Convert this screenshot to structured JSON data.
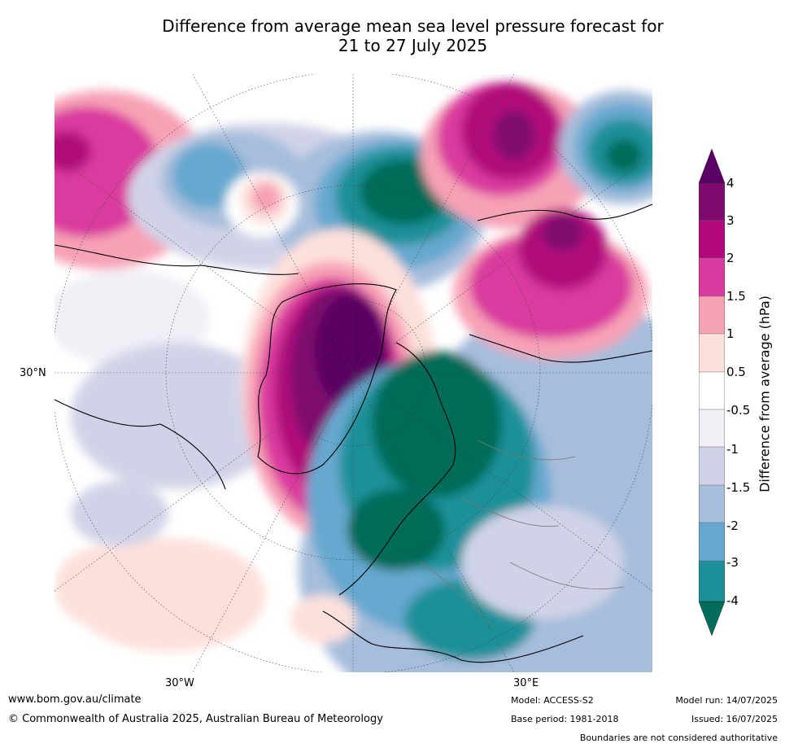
{
  "title": {
    "line1": "Difference from average mean sea level pressure forecast for",
    "line2": "21 to 27 July 2025"
  },
  "map": {
    "projection": "north-polar-stereographic",
    "lon_labels": [
      "30°W",
      "30°E"
    ],
    "lat_labels": [
      "30°N"
    ],
    "grid": "dotted"
  },
  "colorbar": {
    "title": "Difference from average (hPa)",
    "ticks": [
      "4",
      "3",
      "2",
      "1.5",
      "1",
      "0.5",
      "-0.5",
      "-1",
      "-1.5",
      "-2",
      "-3",
      "-4"
    ],
    "colors": [
      "#5a0064",
      "#7e0a6e",
      "#b0087a",
      "#d93a9e",
      "#f7a1b6",
      "#fde0dc",
      "#ffffff",
      "#f1eef6",
      "#d0d3e7",
      "#a6bddb",
      "#66a8cf",
      "#1c9099",
      "#016c59"
    ],
    "extend": "both"
  },
  "footer": {
    "website": "www.bom.gov.au/climate",
    "copyright": "© Commonwealth of Australia 2025, Australian Bureau of Meteorology",
    "model": "Model: ACCESS-S2",
    "base_period": "Base period: 1981-2018",
    "model_run": "Model run: 14/07/2025",
    "issued": "Issued: 16/07/2025",
    "boundaries_note": "Boundaries are not considered authoritative"
  }
}
